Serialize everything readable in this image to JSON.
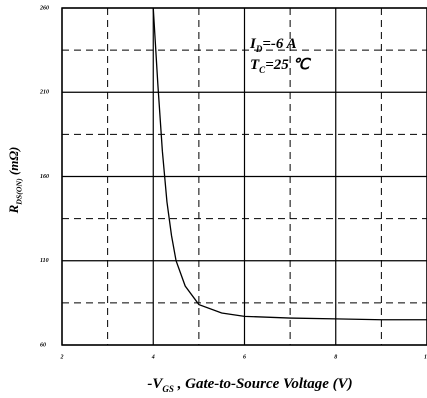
{
  "chart_data": {
    "type": "line",
    "x_label": {
      "symbol": "-V",
      "subscript": "GS",
      "text": " , Gate-to-Source Voltage (V)"
    },
    "y_label": {
      "symbol": "R",
      "subscript": "DS(ON)",
      "text": " (mΩ)"
    },
    "annotations": [
      {
        "symbol": "I",
        "subscript": "D",
        "text": "=-6 A"
      },
      {
        "symbol": "T",
        "subscript": "C",
        "text": "=25 ℃"
      }
    ],
    "x": [
      4,
      4.1,
      4.2,
      4.3,
      4.4,
      4.5,
      4.7,
      5,
      5.5,
      6,
      7,
      8,
      9,
      10
    ],
    "series": [
      {
        "name": "RDS(ON)",
        "color": "#000000",
        "values": [
          260,
          215,
          175,
          145,
          125,
          110,
          95,
          84,
          79,
          77,
          76,
          75.5,
          75,
          75
        ]
      }
    ],
    "xlim": [
      2,
      10
    ],
    "xticks": [
      2,
      4,
      6,
      8,
      10
    ],
    "xminor": [
      3,
      5,
      7,
      9
    ],
    "ylim": [
      60,
      260
    ],
    "yticks": [
      60,
      110,
      160,
      210,
      260
    ],
    "yminor": [
      85,
      135,
      185,
      235
    ],
    "grid": true
  }
}
